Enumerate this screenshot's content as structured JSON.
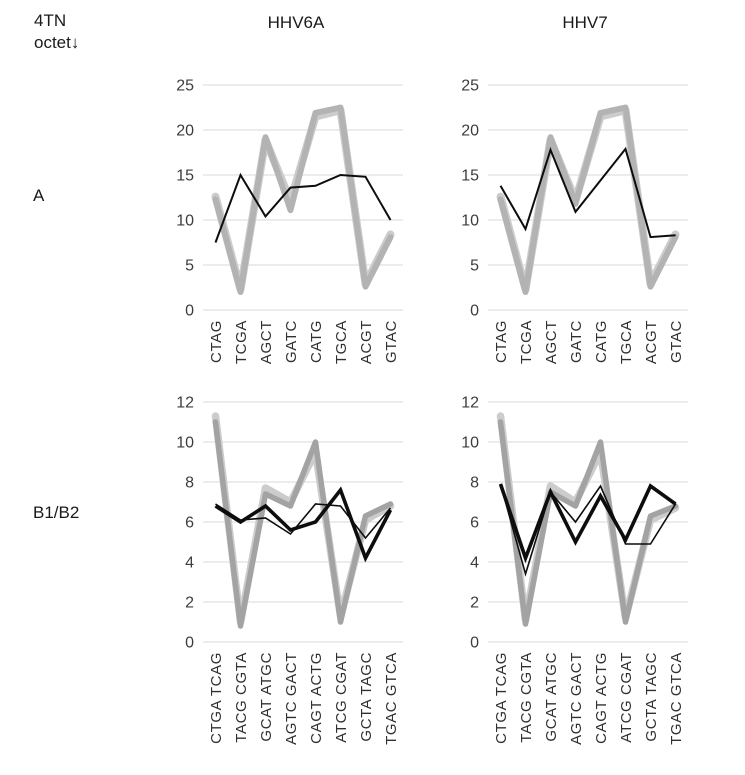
{
  "header": {
    "corner_line1": "4TN",
    "corner_line2": "octet↓",
    "col1_label": "HHV6A",
    "col2_label": "HHV7"
  },
  "rows": {
    "row1_label": "A",
    "row2_label": "B1/B2"
  },
  "colors": {
    "gridline": "#d9d9d9",
    "axis_line": "#d9d9d9",
    "tick_text": "#3d3d3d",
    "gray_light": "#cccccc",
    "gray_dark_top": "#b3b3b3",
    "gray_dark_bottom": "#a3a3a3",
    "black_line": "#0d0d0d"
  },
  "chart_data": [
    {
      "id": "panel-A-HHV6A",
      "type": "line",
      "row": "A",
      "column": "HHV6A",
      "title": "",
      "xlabel": "",
      "ylabel": "",
      "grid": true,
      "legend": "none",
      "ylim": [
        0,
        25
      ],
      "yticks": [
        0,
        5,
        10,
        15,
        20,
        25
      ],
      "categories": [
        "CTAG",
        "TCGA",
        "AGCT",
        "GATC",
        "CATG",
        "TGCA",
        "ACGT",
        "GTAC"
      ],
      "series": [
        {
          "name": "reference-light-gray",
          "color": "#cccccc",
          "width": 8,
          "cap": "round",
          "values": [
            12.6,
            2.3,
            18.9,
            12.1,
            21.5,
            22.2,
            2.9,
            8.4
          ]
        },
        {
          "name": "reference-dark-gray",
          "color": "#b3b3b3",
          "width": 6,
          "cap": "round",
          "values": [
            12.3,
            2.0,
            19.2,
            11.1,
            21.9,
            22.5,
            2.6,
            8.1
          ]
        },
        {
          "name": "hhv6a-black",
          "color": "#0d0d0d",
          "width": 2,
          "cap": "butt",
          "values": [
            7.5,
            15.0,
            10.4,
            13.6,
            13.8,
            15.0,
            14.8,
            10.0
          ]
        }
      ]
    },
    {
      "id": "panel-A-HHV7",
      "type": "line",
      "row": "A",
      "column": "HHV7",
      "title": "",
      "xlabel": "",
      "ylabel": "",
      "grid": true,
      "legend": "none",
      "ylim": [
        0,
        25
      ],
      "yticks": [
        0,
        5,
        10,
        15,
        20,
        25
      ],
      "categories": [
        "CTAG",
        "TCGA",
        "AGCT",
        "GATC",
        "CATG",
        "TGCA",
        "ACGT",
        "GTAC"
      ],
      "series": [
        {
          "name": "reference-light-gray",
          "color": "#cccccc",
          "width": 8,
          "cap": "round",
          "values": [
            12.6,
            2.3,
            18.9,
            12.2,
            21.5,
            22.2,
            2.9,
            8.4
          ]
        },
        {
          "name": "reference-dark-gray",
          "color": "#b3b3b3",
          "width": 6,
          "cap": "round",
          "values": [
            12.3,
            2.0,
            19.2,
            11.8,
            21.9,
            22.5,
            2.6,
            8.1
          ]
        },
        {
          "name": "hhv7-black",
          "color": "#0d0d0d",
          "width": 2,
          "cap": "butt",
          "values": [
            13.8,
            9.0,
            17.8,
            10.9,
            14.4,
            17.9,
            8.1,
            8.3
          ]
        }
      ]
    },
    {
      "id": "panel-B1B2-HHV6A",
      "type": "line",
      "row": "B1/B2",
      "column": "HHV6A",
      "title": "",
      "xlabel": "",
      "ylabel": "",
      "grid": true,
      "legend": "none",
      "ylim": [
        0,
        12
      ],
      "yticks": [
        0,
        2,
        4,
        6,
        8,
        10,
        12
      ],
      "categories": [
        "CTGA TCAG",
        "TACG CGTA",
        "GCAT ATGC",
        "AGTC GACT",
        "CAGT ACTG",
        "ATCG CGAT",
        "GCTA TAGC",
        "TGAC GTCA"
      ],
      "series": [
        {
          "name": "reference-light-gray",
          "color": "#cccccc",
          "width": 7.5,
          "cap": "round",
          "values": [
            11.3,
            1.0,
            7.7,
            7.0,
            9.5,
            1.3,
            6.1,
            6.8
          ]
        },
        {
          "name": "reference-dark-gray",
          "color": "#a3a3a3",
          "width": 5.5,
          "cap": "round",
          "values": [
            11.0,
            0.8,
            7.4,
            6.8,
            10.0,
            1.0,
            6.3,
            6.9
          ]
        },
        {
          "name": "b-thick-black",
          "color": "#0d0d0d",
          "width": 3.6,
          "cap": "butt",
          "values": [
            6.8,
            6.0,
            6.8,
            5.6,
            6.0,
            7.6,
            4.2,
            6.6
          ]
        },
        {
          "name": "b-thin-black",
          "color": "#0d0d0d",
          "width": 1.6,
          "cap": "butt",
          "values": [
            6.9,
            6.1,
            6.2,
            5.4,
            6.9,
            6.8,
            5.2,
            6.7
          ]
        }
      ]
    },
    {
      "id": "panel-B1B2-HHV7",
      "type": "line",
      "row": "B1/B2",
      "column": "HHV7",
      "title": "",
      "xlabel": "",
      "ylabel": "",
      "grid": true,
      "legend": "none",
      "ylim": [
        0,
        12
      ],
      "yticks": [
        0,
        2,
        4,
        6,
        8,
        10,
        12
      ],
      "categories": [
        "CTGA TCAG",
        "TACG CGTA",
        "GCAT ATGC",
        "AGTC GACT",
        "CAGT ACTG",
        "ATCG CGAT",
        "GCTA TAGC",
        "TGAC GTCA"
      ],
      "series": [
        {
          "name": "reference-light-gray",
          "color": "#cccccc",
          "width": 7.5,
          "cap": "round",
          "values": [
            11.3,
            1.1,
            7.8,
            7.0,
            9.5,
            1.2,
            6.1,
            6.7
          ]
        },
        {
          "name": "reference-dark-gray",
          "color": "#a3a3a3",
          "width": 5.5,
          "cap": "round",
          "values": [
            11.0,
            0.9,
            7.5,
            6.8,
            10.0,
            1.0,
            6.3,
            6.8
          ]
        },
        {
          "name": "b-thick-black",
          "color": "#0d0d0d",
          "width": 3.6,
          "cap": "butt",
          "values": [
            7.9,
            4.2,
            7.5,
            5.0,
            7.3,
            5.1,
            7.8,
            6.9
          ]
        },
        {
          "name": "b-thin-black",
          "color": "#0d0d0d",
          "width": 1.6,
          "cap": "butt",
          "values": [
            7.9,
            3.4,
            7.5,
            6.0,
            7.8,
            4.9,
            4.9,
            6.9
          ]
        }
      ]
    }
  ]
}
